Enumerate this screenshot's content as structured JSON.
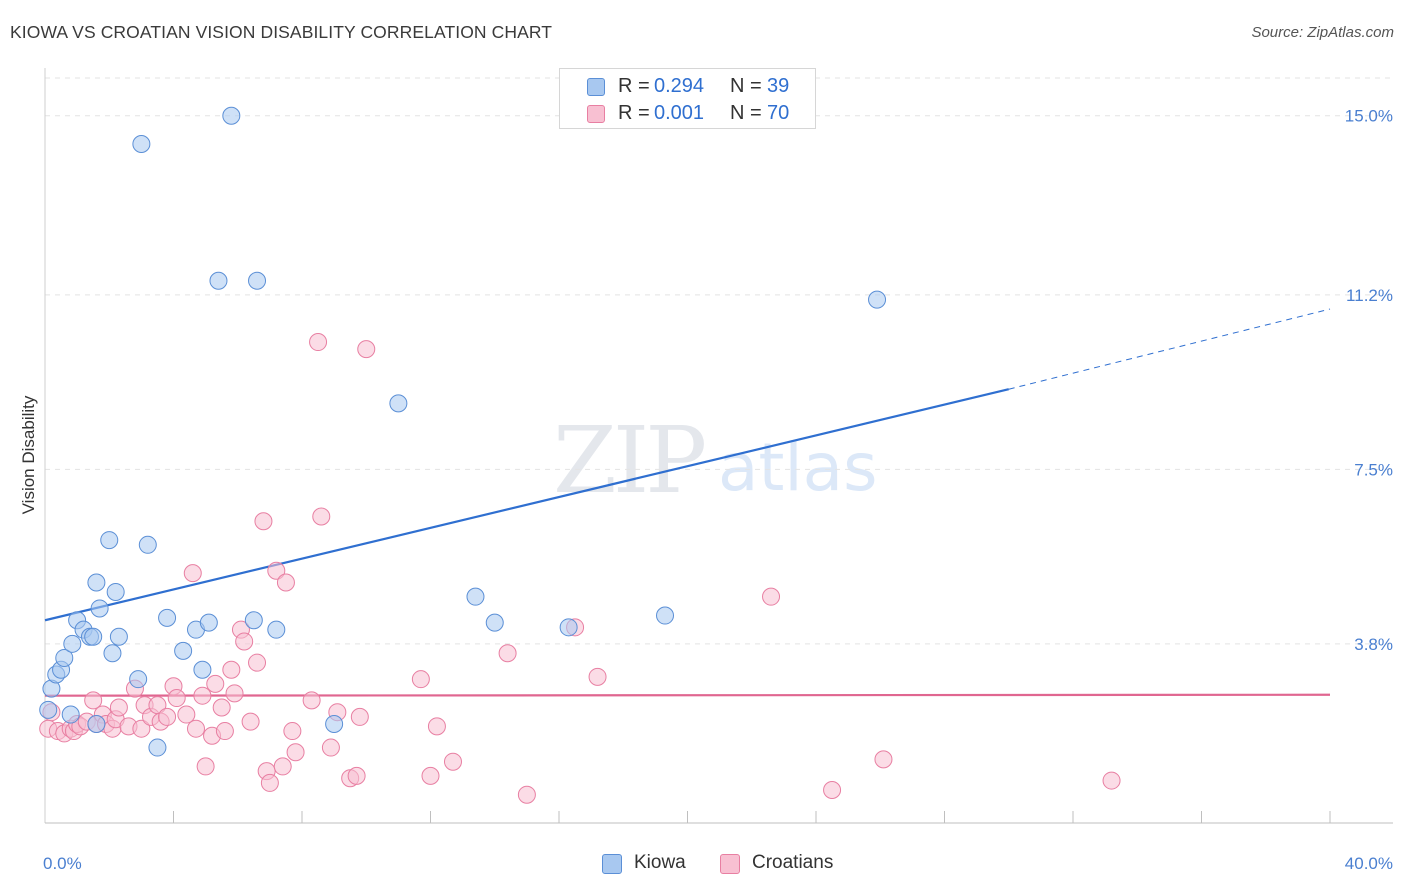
{
  "title": "KIOWA VS CROATIAN VISION DISABILITY CORRELATION CHART",
  "source": "Source: ZipAtlas.com",
  "watermark": {
    "zip": "ZIP",
    "atlas": "atlas"
  },
  "legend_top": [
    {
      "r_label": "R = ",
      "r_value": "0.294",
      "n_label": "N = ",
      "n_value": "39",
      "color": "#a8c8f0",
      "border": "#5b8fd6"
    },
    {
      "r_label": "R = ",
      "r_value": "0.001",
      "n_label": "N = ",
      "n_value": "70",
      "color": "#f8c0d2",
      "border": "#e87fa2"
    }
  ],
  "legend_bottom": [
    {
      "label": "Kiowa",
      "color": "#a8c8f0",
      "border": "#5b8fd6"
    },
    {
      "label": "Croatians",
      "color": "#f8c0d2",
      "border": "#e87fa2"
    }
  ],
  "chart_data": {
    "type": "scatter",
    "title": "KIOWA VS CROATIAN VISION DISABILITY CORRELATION CHART",
    "xlabel": "",
    "ylabel": "Vision Disability",
    "xlim": [
      0,
      40
    ],
    "ylim": [
      0,
      15.8
    ],
    "x_tick_labels": [
      "0.0%",
      "40.0%"
    ],
    "y_ticks": [
      3.8,
      7.5,
      11.2,
      15.0
    ],
    "y_tick_labels": [
      "3.8%",
      "7.5%",
      "11.2%",
      "15.0%"
    ],
    "series": [
      {
        "name": "Kiowa",
        "color": "#a8c8f0",
        "stroke": "#5b8fd6",
        "r": 0.294,
        "n": 39,
        "trend": {
          "x": [
            0,
            30
          ],
          "y": [
            4.3,
            9.2
          ],
          "dash_to": [
            40,
            10.9
          ],
          "color": "#2f6fd0"
        },
        "points": [
          [
            0.1,
            2.4
          ],
          [
            0.2,
            2.85
          ],
          [
            0.35,
            3.15
          ],
          [
            0.5,
            3.25
          ],
          [
            0.6,
            3.5
          ],
          [
            0.8,
            2.3
          ],
          [
            0.85,
            3.8
          ],
          [
            1.0,
            4.3
          ],
          [
            1.2,
            4.1
          ],
          [
            1.4,
            3.95
          ],
          [
            1.5,
            3.95
          ],
          [
            1.6,
            2.1
          ],
          [
            1.6,
            5.1
          ],
          [
            1.7,
            4.55
          ],
          [
            2.0,
            6.0
          ],
          [
            2.1,
            3.6
          ],
          [
            2.2,
            4.9
          ],
          [
            2.3,
            3.95
          ],
          [
            2.9,
            3.05
          ],
          [
            3.2,
            5.9
          ],
          [
            3.5,
            1.6
          ],
          [
            3.8,
            4.35
          ],
          [
            4.3,
            3.65
          ],
          [
            4.7,
            4.1
          ],
          [
            4.9,
            3.25
          ],
          [
            5.1,
            4.25
          ],
          [
            5.4,
            11.5
          ],
          [
            5.8,
            15.0
          ],
          [
            6.5,
            4.3
          ],
          [
            6.6,
            11.5
          ],
          [
            7.2,
            4.1
          ],
          [
            3.0,
            14.4
          ],
          [
            9.0,
            2.1
          ],
          [
            11.0,
            8.9
          ],
          [
            13.4,
            4.8
          ],
          [
            14.0,
            4.25
          ],
          [
            16.3,
            4.15
          ],
          [
            19.3,
            4.4
          ],
          [
            25.9,
            11.1
          ]
        ]
      },
      {
        "name": "Croatians",
        "color": "#f8c0d2",
        "stroke": "#e87fa2",
        "r": 0.001,
        "n": 70,
        "trend": {
          "x": [
            0,
            40
          ],
          "y": [
            2.7,
            2.72
          ],
          "color": "#e06690"
        },
        "points": [
          [
            0.1,
            2.0
          ],
          [
            0.2,
            2.35
          ],
          [
            0.4,
            1.95
          ],
          [
            0.6,
            1.9
          ],
          [
            0.8,
            2.0
          ],
          [
            0.9,
            1.95
          ],
          [
            1.0,
            2.1
          ],
          [
            1.1,
            2.05
          ],
          [
            1.3,
            2.15
          ],
          [
            1.5,
            2.6
          ],
          [
            1.6,
            2.1
          ],
          [
            1.8,
            2.3
          ],
          [
            1.9,
            2.1
          ],
          [
            2.1,
            2.0
          ],
          [
            2.2,
            2.2
          ],
          [
            2.3,
            2.45
          ],
          [
            2.6,
            2.05
          ],
          [
            2.8,
            2.85
          ],
          [
            3.0,
            2.0
          ],
          [
            3.1,
            2.5
          ],
          [
            3.3,
            2.25
          ],
          [
            3.5,
            2.5
          ],
          [
            3.6,
            2.15
          ],
          [
            3.8,
            2.25
          ],
          [
            4.0,
            2.9
          ],
          [
            4.1,
            2.65
          ],
          [
            4.4,
            2.3
          ],
          [
            4.6,
            5.3
          ],
          [
            4.7,
            2.0
          ],
          [
            4.9,
            2.7
          ],
          [
            5.0,
            1.2
          ],
          [
            5.2,
            1.85
          ],
          [
            5.3,
            2.95
          ],
          [
            5.5,
            2.45
          ],
          [
            5.6,
            1.95
          ],
          [
            5.8,
            3.25
          ],
          [
            5.9,
            2.75
          ],
          [
            6.1,
            4.1
          ],
          [
            6.2,
            3.85
          ],
          [
            6.4,
            2.15
          ],
          [
            6.6,
            3.4
          ],
          [
            6.8,
            6.4
          ],
          [
            6.9,
            1.1
          ],
          [
            7.0,
            0.85
          ],
          [
            7.2,
            5.35
          ],
          [
            7.4,
            1.2
          ],
          [
            7.5,
            5.1
          ],
          [
            7.7,
            1.95
          ],
          [
            7.8,
            1.5
          ],
          [
            8.3,
            2.6
          ],
          [
            8.5,
            10.2
          ],
          [
            8.6,
            6.5
          ],
          [
            8.9,
            1.6
          ],
          [
            9.1,
            2.35
          ],
          [
            9.5,
            0.95
          ],
          [
            9.7,
            1.0
          ],
          [
            9.8,
            2.25
          ],
          [
            10.0,
            10.05
          ],
          [
            11.7,
            3.05
          ],
          [
            12.0,
            1.0
          ],
          [
            12.2,
            2.05
          ],
          [
            12.7,
            1.3
          ],
          [
            14.4,
            3.6
          ],
          [
            15.0,
            0.6
          ],
          [
            16.5,
            4.15
          ],
          [
            17.2,
            3.1
          ],
          [
            22.6,
            4.8
          ],
          [
            24.5,
            0.7
          ],
          [
            26.1,
            1.35
          ],
          [
            33.2,
            0.9
          ]
        ]
      }
    ]
  }
}
